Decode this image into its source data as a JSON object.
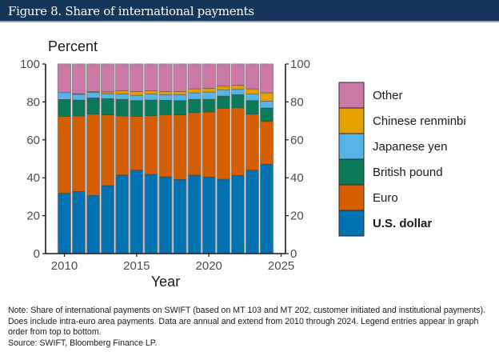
{
  "header": {
    "title": "Figure 8. Share of international payments"
  },
  "chart_data": {
    "type": "bar",
    "stacked": true,
    "title": "Figure 8. Share of international payments",
    "ylabel": "Percent",
    "xlabel": "Year",
    "ylim": [
      0,
      100
    ],
    "xlim": [
      2008.7,
      2025.3
    ],
    "yticks": [
      0,
      20,
      40,
      60,
      80,
      100
    ],
    "xticks": [
      2010,
      2015,
      2020,
      2025
    ],
    "grid": false,
    "legend_position": "right",
    "categories": [
      2010,
      2011,
      2012,
      2013,
      2014,
      2015,
      2016,
      2017,
      2018,
      2019,
      2020,
      2021,
      2022,
      2023,
      2024
    ],
    "series": [
      {
        "name": "U.S. dollar",
        "color": "#0072B2",
        "bold": true,
        "values": [
          31.8,
          32.8,
          30.7,
          35.9,
          41.5,
          44.0,
          41.8,
          40.5,
          39.1,
          41.4,
          40.4,
          39.2,
          41.2,
          44.0,
          47.1
        ]
      },
      {
        "name": "Euro",
        "color": "#D55E00",
        "bold": false,
        "values": [
          40.6,
          39.8,
          42.8,
          37.2,
          31.1,
          28.4,
          30.9,
          32.8,
          34.0,
          33.0,
          34.3,
          37.5,
          35.7,
          29.5,
          22.6
        ]
      },
      {
        "name": "British pound",
        "color": "#0A7A5A",
        "bold": false,
        "values": [
          8.9,
          8.4,
          8.6,
          8.6,
          8.8,
          8.3,
          8.3,
          7.6,
          7.6,
          7.0,
          6.7,
          6.4,
          6.9,
          7.2,
          7.1
        ]
      },
      {
        "name": "Japanese yen",
        "color": "#56B4E9",
        "bold": false,
        "values": [
          3.6,
          3.0,
          2.9,
          2.7,
          2.7,
          2.8,
          3.1,
          2.9,
          3.1,
          3.4,
          3.8,
          3.3,
          2.8,
          3.4,
          3.6
        ]
      },
      {
        "name": "Chinese renminbi",
        "color": "#E69F00",
        "bold": false,
        "values": [
          0.0,
          0.3,
          0.5,
          0.9,
          1.7,
          2.0,
          1.8,
          1.7,
          1.7,
          2.1,
          2.0,
          1.9,
          2.1,
          2.8,
          4.4
        ]
      },
      {
        "name": "Other",
        "color": "#CC79A7",
        "bold": false,
        "values": [
          15.1,
          15.7,
          14.5,
          14.7,
          14.2,
          14.5,
          14.1,
          14.5,
          14.5,
          13.1,
          12.8,
          11.7,
          11.3,
          13.1,
          15.2
        ]
      }
    ],
    "legend_order": [
      "Other",
      "Chinese renminbi",
      "Japanese yen",
      "British pound",
      "Euro",
      "U.S. dollar"
    ]
  },
  "note": {
    "text": "Note: Share of international payments on SWIFT (based on MT 103 and MT 202, customer initiated and institutional payments). Does include intra-euro area payments. Data are annual and extend from 2010 through 2024. Legend entries appear in graph order from top to bottom.",
    "source": "Source: SWIFT, Bloomberg Finance LP."
  }
}
